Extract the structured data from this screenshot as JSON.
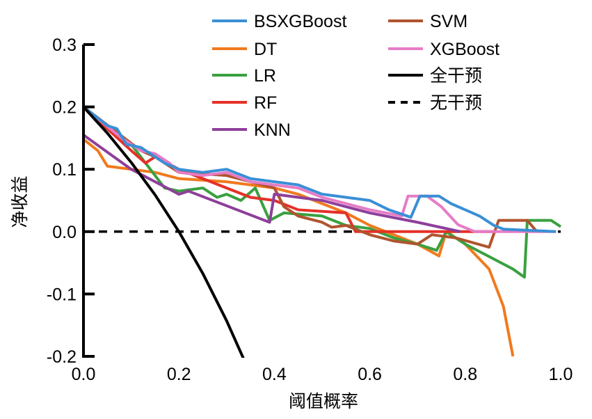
{
  "chart_data": {
    "type": "line",
    "title": "",
    "xlabel": "阈值概率",
    "ylabel": "净收益",
    "xlim": [
      0,
      1.0
    ],
    "ylim": [
      -0.2,
      0.3
    ],
    "xticks": [
      "0.0",
      "0.2",
      "0.4",
      "0.6",
      "0.8",
      "1.0"
    ],
    "xtick_values": [
      0,
      0.2,
      0.4,
      0.6,
      0.8,
      1.0
    ],
    "yticks": [
      "-0.2",
      "-0.1",
      "0.0",
      "0.1",
      "0.2",
      "0.3"
    ],
    "ytick_values": [
      -0.2,
      -0.1,
      0,
      0.1,
      0.2,
      0.3
    ],
    "grid": false,
    "legend_placement": "top",
    "series": [
      {
        "name": "BSXGBoost",
        "color": "#3a8fd6",
        "dash": false,
        "points": [
          [
            0,
            0.2
          ],
          [
            0.05,
            0.17
          ],
          [
            0.07,
            0.165
          ],
          [
            0.09,
            0.14
          ],
          [
            0.12,
            0.135
          ],
          [
            0.14,
            0.125
          ],
          [
            0.17,
            0.11
          ],
          [
            0.2,
            0.1
          ],
          [
            0.25,
            0.095
          ],
          [
            0.3,
            0.1
          ],
          [
            0.35,
            0.085
          ],
          [
            0.4,
            0.08
          ],
          [
            0.45,
            0.075
          ],
          [
            0.5,
            0.06
          ],
          [
            0.55,
            0.055
          ],
          [
            0.6,
            0.05
          ],
          [
            0.64,
            0.035
          ],
          [
            0.686,
            0.023
          ],
          [
            0.705,
            0.057
          ],
          [
            0.745,
            0.057
          ],
          [
            0.77,
            0.045
          ],
          [
            0.8,
            0.035
          ],
          [
            0.83,
            0.025
          ],
          [
            0.86,
            0.01
          ],
          [
            0.88,
            0.004
          ],
          [
            0.99,
            0.0
          ]
        ]
      },
      {
        "name": "DT",
        "color": "#f07a1e",
        "dash": false,
        "points": [
          [
            0,
            0.148
          ],
          [
            0.03,
            0.13
          ],
          [
            0.05,
            0.105
          ],
          [
            0.15,
            0.095
          ],
          [
            0.2,
            0.085
          ],
          [
            0.3,
            0.08
          ],
          [
            0.4,
            0.07
          ],
          [
            0.45,
            0.06
          ],
          [
            0.5,
            0.045
          ],
          [
            0.55,
            0.03
          ],
          [
            0.6,
            0.01
          ],
          [
            0.65,
            -0.005
          ],
          [
            0.7,
            -0.02
          ],
          [
            0.745,
            -0.039
          ],
          [
            0.76,
            0.0
          ],
          [
            0.8,
            -0.02
          ],
          [
            0.85,
            -0.06
          ],
          [
            0.88,
            -0.12
          ],
          [
            0.9,
            -0.2
          ]
        ]
      },
      {
        "name": "LR",
        "color": "#3aa040",
        "dash": false,
        "points": [
          [
            0,
            0.2
          ],
          [
            0.1,
            0.14
          ],
          [
            0.13,
            0.11
          ],
          [
            0.17,
            0.07
          ],
          [
            0.2,
            0.065
          ],
          [
            0.25,
            0.07
          ],
          [
            0.28,
            0.055
          ],
          [
            0.3,
            0.06
          ],
          [
            0.33,
            0.05
          ],
          [
            0.36,
            0.07
          ],
          [
            0.39,
            0.018
          ],
          [
            0.42,
            0.03
          ],
          [
            0.5,
            0.025
          ],
          [
            0.55,
            0.01
          ],
          [
            0.6,
            0.005
          ],
          [
            0.65,
            -0.01
          ],
          [
            0.7,
            -0.02
          ],
          [
            0.74,
            -0.03
          ],
          [
            0.76,
            0.0
          ],
          [
            0.8,
            -0.02
          ],
          [
            0.85,
            -0.04
          ],
          [
            0.9,
            -0.06
          ],
          [
            0.924,
            -0.073
          ],
          [
            0.93,
            0.018
          ],
          [
            0.98,
            0.018
          ],
          [
            1.0,
            0.008
          ]
        ]
      },
      {
        "name": "RF",
        "color": "#e53027",
        "dash": false,
        "points": [
          [
            0,
            0.2
          ],
          [
            0.1,
            0.13
          ],
          [
            0.13,
            0.11
          ],
          [
            0.15,
            0.12
          ],
          [
            0.2,
            0.1
          ],
          [
            0.25,
            0.085
          ],
          [
            0.3,
            0.07
          ],
          [
            0.35,
            0.055
          ],
          [
            0.4,
            0.05
          ],
          [
            0.45,
            0.035
          ],
          [
            0.55,
            0.03
          ],
          [
            0.57,
            0.0
          ],
          [
            0.86,
            0.0
          ]
        ]
      },
      {
        "name": "KNN",
        "color": "#8e3f9a",
        "dash": false,
        "points": [
          [
            0,
            0.155
          ],
          [
            0.1,
            0.1
          ],
          [
            0.2,
            0.06
          ],
          [
            0.22,
            0.065
          ],
          [
            0.39,
            0.015
          ],
          [
            0.4,
            0.06
          ],
          [
            0.5,
            0.05
          ],
          [
            0.6,
            0.03
          ],
          [
            0.7,
            0.015
          ],
          [
            0.79,
            0.0
          ]
        ]
      },
      {
        "name": "SVM",
        "color": "#b0542e",
        "dash": false,
        "points": [
          [
            0,
            0.2
          ],
          [
            0.12,
            0.13
          ],
          [
            0.15,
            0.12
          ],
          [
            0.2,
            0.095
          ],
          [
            0.3,
            0.09
          ],
          [
            0.35,
            0.08
          ],
          [
            0.4,
            0.07
          ],
          [
            0.42,
            0.04
          ],
          [
            0.45,
            0.025
          ],
          [
            0.5,
            0.015
          ],
          [
            0.52,
            0.007
          ],
          [
            0.55,
            0.01
          ],
          [
            0.6,
            -0.005
          ],
          [
            0.65,
            -0.015
          ],
          [
            0.7,
            -0.02
          ],
          [
            0.73,
            -0.005
          ],
          [
            0.78,
            -0.01
          ],
          [
            0.85,
            -0.025
          ],
          [
            0.87,
            0.018
          ],
          [
            0.93,
            0.018
          ],
          [
            0.95,
            0.0
          ]
        ]
      },
      {
        "name": "XGBoost",
        "color": "#e67cc6",
        "dash": false,
        "points": [
          [
            0,
            0.2
          ],
          [
            0.08,
            0.15
          ],
          [
            0.12,
            0.13
          ],
          [
            0.15,
            0.125
          ],
          [
            0.18,
            0.11
          ],
          [
            0.2,
            0.095
          ],
          [
            0.25,
            0.09
          ],
          [
            0.3,
            0.095
          ],
          [
            0.35,
            0.08
          ],
          [
            0.4,
            0.075
          ],
          [
            0.45,
            0.07
          ],
          [
            0.5,
            0.055
          ],
          [
            0.55,
            0.045
          ],
          [
            0.6,
            0.035
          ],
          [
            0.667,
            0.025
          ],
          [
            0.68,
            0.057
          ],
          [
            0.72,
            0.057
          ],
          [
            0.75,
            0.04
          ],
          [
            0.785,
            0.011
          ],
          [
            0.82,
            0.0
          ],
          [
            0.99,
            0.0
          ]
        ]
      },
      {
        "name": "全干预",
        "color": "#000000",
        "dash": false,
        "points": [
          [
            0,
            0.2
          ],
          [
            0.05,
            0.158
          ],
          [
            0.1,
            0.111
          ],
          [
            0.15,
            0.059
          ],
          [
            0.2,
            0.0
          ],
          [
            0.25,
            -0.067
          ],
          [
            0.3,
            -0.143
          ],
          [
            0.335,
            -0.203
          ]
        ]
      },
      {
        "name": "无干预",
        "color": "#000000",
        "dash": true,
        "points": [
          [
            0,
            0
          ],
          [
            1.0,
            0
          ]
        ]
      }
    ]
  }
}
